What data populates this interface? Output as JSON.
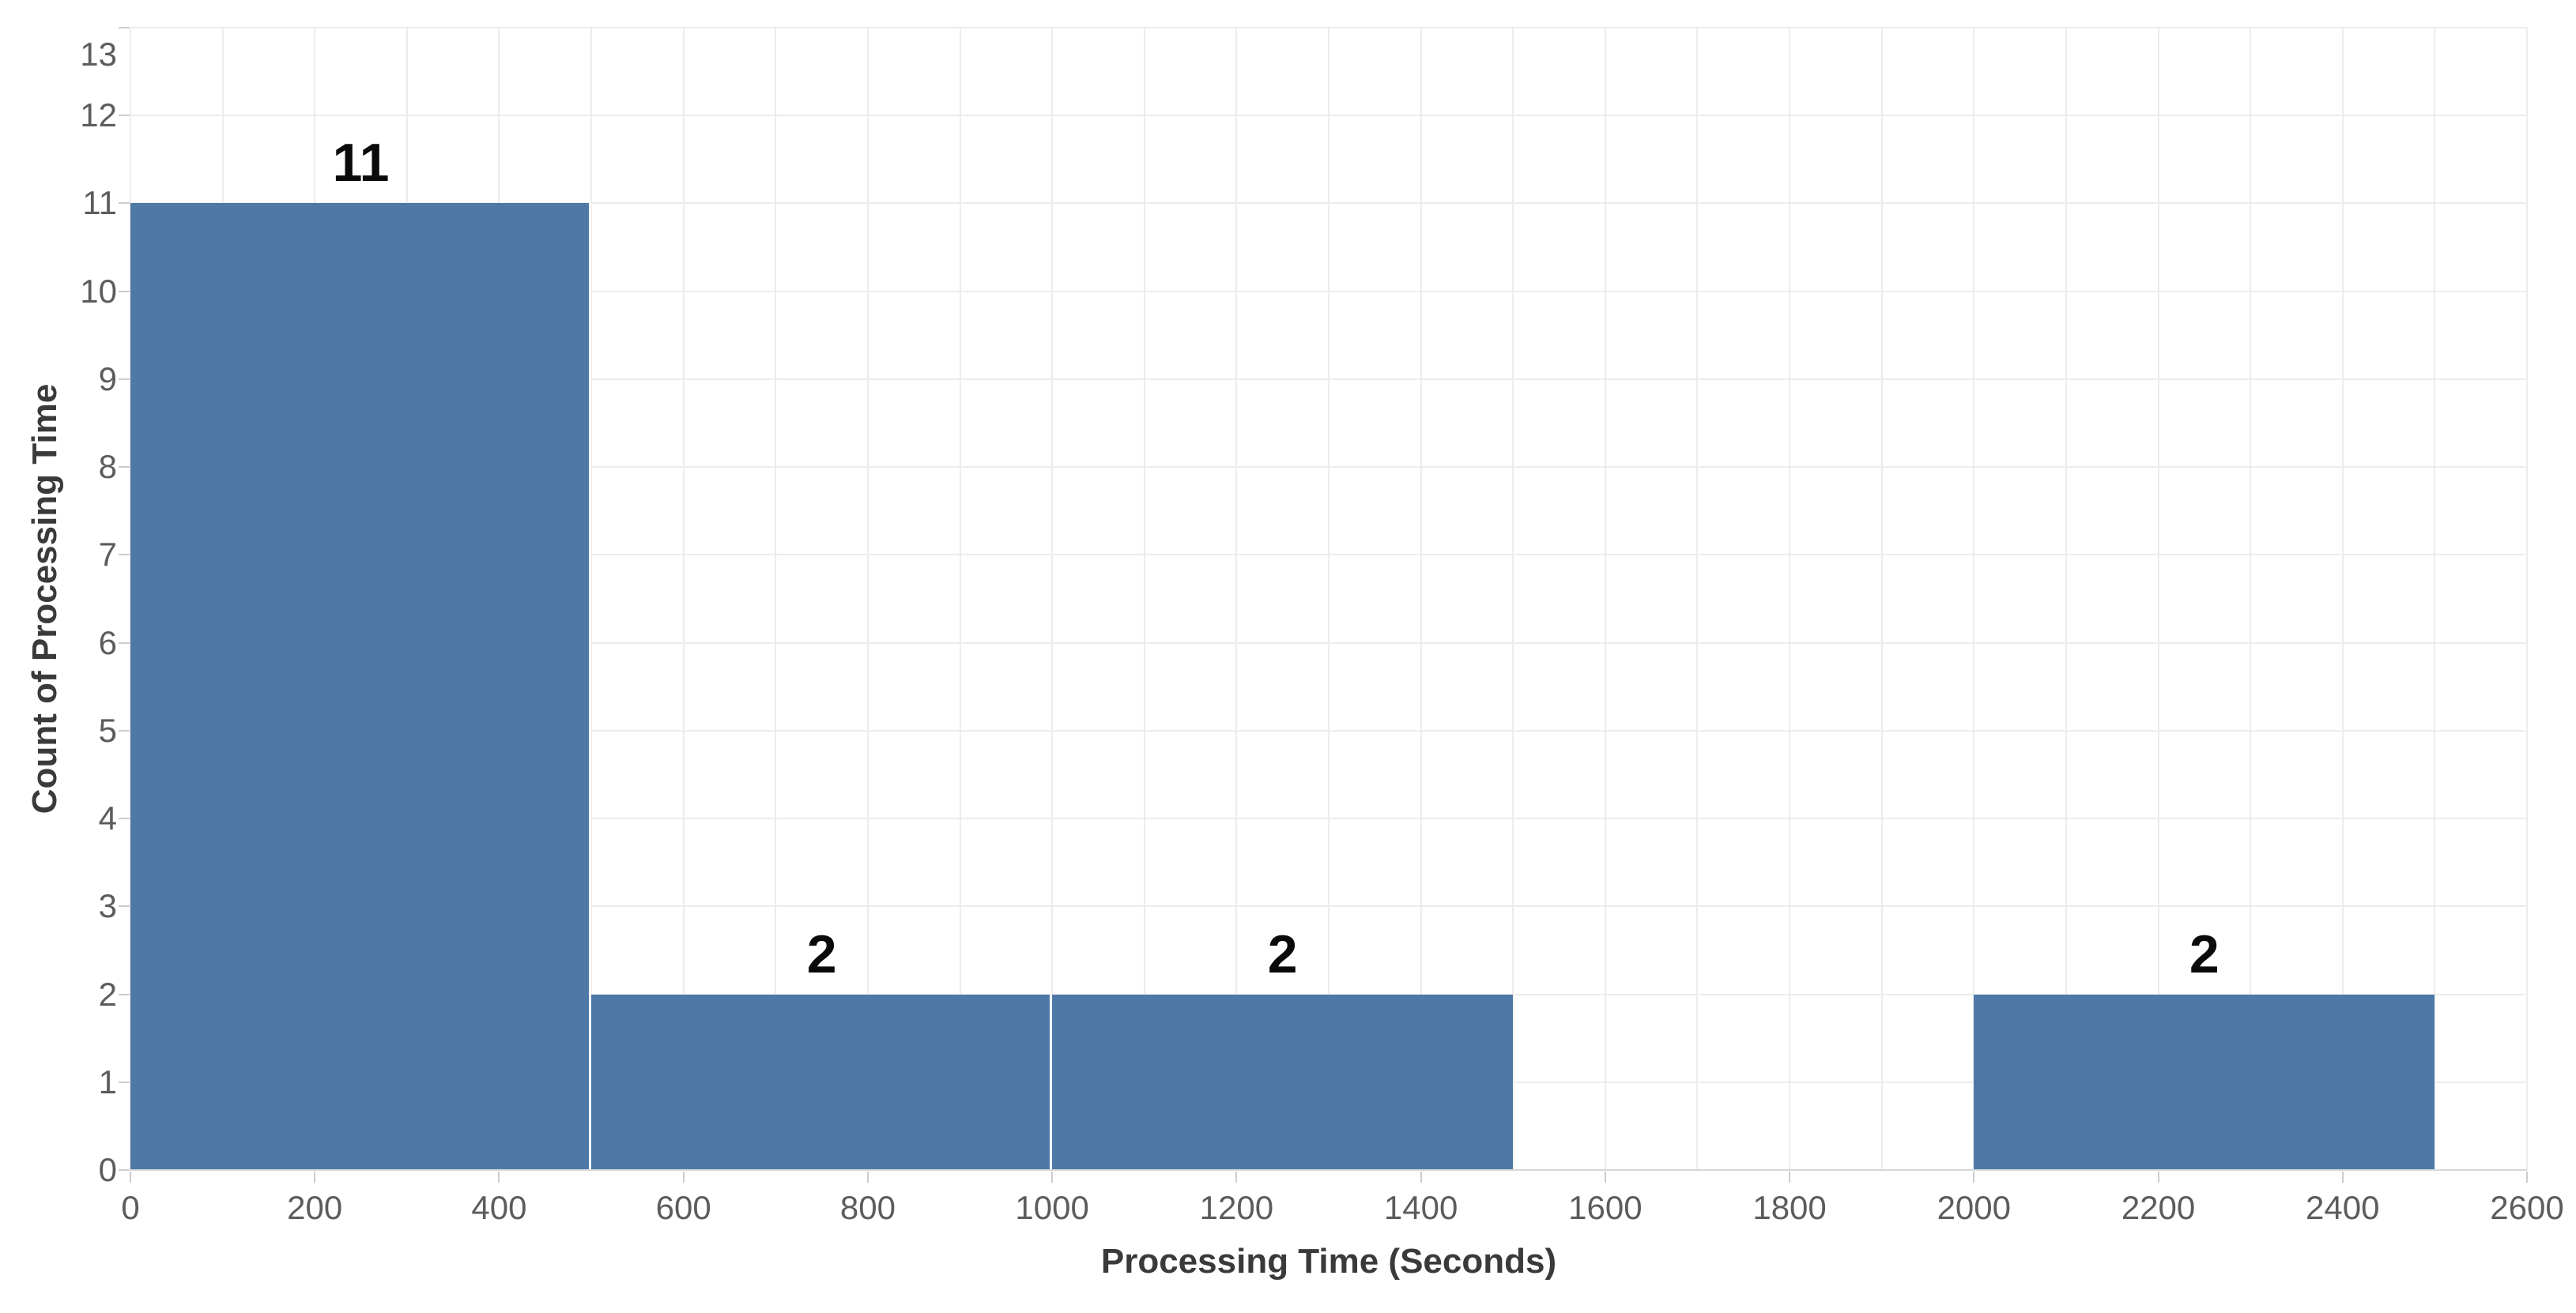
{
  "chart_data": {
    "type": "bar",
    "subtype": "histogram",
    "title": "",
    "xlabel": "Processing Time (Seconds)",
    "ylabel": "Count of Processing Time",
    "xlim": [
      0,
      2600
    ],
    "ylim": [
      0,
      13
    ],
    "x_ticks": [
      0,
      200,
      400,
      600,
      800,
      1000,
      1200,
      1400,
      1600,
      1800,
      2000,
      2200,
      2400,
      2600
    ],
    "y_ticks": [
      0,
      1,
      2,
      3,
      4,
      5,
      6,
      7,
      8,
      9,
      10,
      11,
      12,
      13
    ],
    "x_minor_grid_step": 100,
    "grid": true,
    "legend_position": "none",
    "bar_color": "#4e79a7",
    "bins": [
      {
        "range": [
          0,
          500
        ],
        "count": 11,
        "label": "11"
      },
      {
        "range": [
          500,
          1000
        ],
        "count": 2,
        "label": "2"
      },
      {
        "range": [
          1000,
          1500
        ],
        "count": 2,
        "label": "2"
      },
      {
        "range": [
          2000,
          2500
        ],
        "count": 2,
        "label": "2"
      }
    ]
  }
}
